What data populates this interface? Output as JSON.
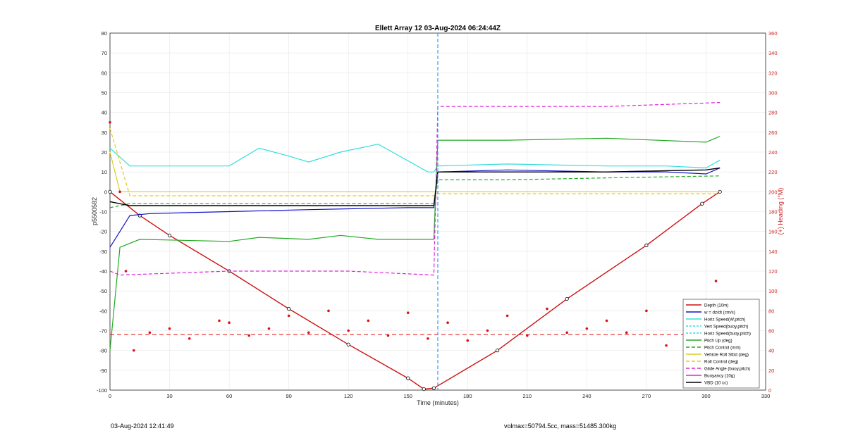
{
  "chart_data": {
    "type": "line",
    "title": "Ellett Array 12 03-Aug-2024 06:24:44Z",
    "xlabel": "Time (minutes)",
    "ylabel": "p5500582",
    "ylabel_right": "(+) Heading (°M)",
    "xlim": [
      0,
      330
    ],
    "ylim": [
      -100,
      80
    ],
    "ylim_right": [
      0,
      360
    ],
    "x_ticks": [
      "0",
      "30",
      "60",
      "90",
      "120",
      "150",
      "180",
      "210",
      "240",
      "270",
      "300",
      "330"
    ],
    "y_ticks": [
      "80",
      "70",
      "60",
      "50",
      "40",
      "30",
      "20",
      "10",
      "0",
      "-10",
      "-20",
      "-30",
      "-40",
      "-50",
      "-60",
      "-70",
      "-80",
      "-90",
      "-100"
    ],
    "y_ticks_right": [
      "360",
      "340",
      "320",
      "300",
      "280",
      "260",
      "240",
      "220",
      "200",
      "180",
      "160",
      "140",
      "120",
      "100",
      "80",
      "60",
      "40",
      "20",
      "0"
    ],
    "grid": true,
    "legend_position": "bottom-right",
    "colors": {
      "depth": "#cc1111",
      "w": "#1111cc",
      "horiz_speed": "#33dddd",
      "pitch": "#22aa22",
      "roll": "#ddcc22",
      "glide": "#dd22dd",
      "vbd": "#000000",
      "heading": "#dd1111",
      "apogee_line": "#3399ff"
    },
    "legend": [
      "Depth (10m)",
      "w = dz/dt (cm/s)",
      "Horiz Speed(W,pitch)",
      "Vert Speed(buoy,pitch)",
      "Horiz Speed(buoy,pitch)",
      "Pitch Up (deg)",
      "Pitch Control (mm)",
      "Vehicle Roll Stbd (deg)",
      "Roll Control (deg)",
      "Glide Angle (buoy,pitch)",
      "Buoyancy (10g)",
      "VBD (10 cc)"
    ],
    "series": [
      {
        "name": "Depth (10m)",
        "x": [
          0,
          15,
          30,
          60,
          90,
          120,
          150,
          158,
          163,
          195,
          230,
          270,
          298,
          307
        ],
        "y": [
          0,
          -12,
          -22,
          -40,
          -59,
          -77,
          -94,
          -99.5,
          -99,
          -80,
          -54,
          -27,
          -6,
          0
        ]
      },
      {
        "name": "w = dz/dt (cm/s)",
        "x": [
          0,
          5,
          10,
          20,
          60,
          100,
          150,
          163,
          165,
          200,
          250,
          280,
          300,
          307
        ],
        "y": [
          -28,
          -20,
          -12,
          -11,
          -10,
          -9,
          -8,
          -8,
          10,
          11,
          10,
          10,
          9,
          12
        ]
      },
      {
        "name": "Horiz Speed(W,pitch)",
        "x": [
          0,
          10,
          30,
          60,
          75,
          90,
          100,
          116,
          135,
          160,
          163,
          165,
          200,
          250,
          280,
          300,
          307
        ],
        "y": [
          22,
          13,
          13,
          13,
          22,
          18,
          15,
          20,
          24,
          10,
          10,
          13,
          14,
          13,
          13,
          12,
          16
        ]
      },
      {
        "name": "Pitch Up (deg)",
        "x": [
          0,
          5,
          15,
          60,
          75,
          100,
          116,
          135,
          163,
          165,
          200,
          250,
          300,
          307
        ],
        "y": [
          -80,
          -28,
          -24,
          -25,
          -23,
          -24,
          -22,
          -24,
          -24,
          26,
          26,
          27,
          25,
          28
        ]
      },
      {
        "name": "Pitch Control (mm)",
        "x": [
          0,
          10,
          60,
          120,
          163,
          165,
          200,
          250,
          307
        ],
        "y": [
          -8,
          -6,
          -6,
          -6,
          -6,
          6,
          6,
          7,
          8
        ]
      },
      {
        "name": "Vehicle Roll Stbd (deg)",
        "x": [
          0,
          5,
          60,
          120,
          163,
          165,
          250,
          307
        ],
        "y": [
          20,
          0,
          0,
          0,
          0,
          0,
          0,
          0
        ]
      },
      {
        "name": "Roll Control (deg)",
        "x": [
          0,
          10,
          60,
          120,
          163,
          165,
          250,
          307
        ],
        "y": [
          32,
          -2,
          -2,
          -2,
          -2,
          -1,
          -1,
          -1
        ]
      },
      {
        "name": "Glide Angle (buoy,pitch)",
        "x": [
          0,
          5,
          60,
          120,
          163,
          165,
          250,
          307
        ],
        "y": [
          -40,
          -42,
          -40,
          -40,
          -42,
          43,
          43,
          45
        ]
      },
      {
        "name": "VBD (10 cc)",
        "x": [
          0,
          10,
          60,
          120,
          163,
          165,
          200,
          250,
          300,
          307
        ],
        "y": [
          -5,
          -7,
          -7,
          -7,
          -7,
          10,
          10,
          10,
          11,
          12
        ]
      },
      {
        "name": "Heading (°M)",
        "axis": "right",
        "x": [
          0,
          5,
          8,
          12,
          20,
          30,
          40,
          55,
          60,
          70,
          80,
          90,
          100,
          110,
          120,
          130,
          140,
          150,
          160,
          170,
          180,
          190,
          200,
          210,
          220,
          230,
          240,
          250,
          260,
          270,
          280,
          290,
          300,
          305
        ],
        "y": [
          270,
          200,
          120,
          40,
          58,
          62,
          52,
          70,
          68,
          55,
          62,
          75,
          58,
          80,
          60,
          70,
          55,
          78,
          52,
          68,
          50,
          60,
          75,
          55,
          82,
          58,
          62,
          70,
          58,
          80,
          45,
          52,
          60,
          110
        ]
      }
    ],
    "annotations": {
      "heading_mean": 56,
      "apogee_time": 165
    }
  },
  "footer": {
    "timestamp": "03-Aug-2024 12:41:49",
    "info": "volmax=50794.5cc, mass=51485.300kg"
  }
}
